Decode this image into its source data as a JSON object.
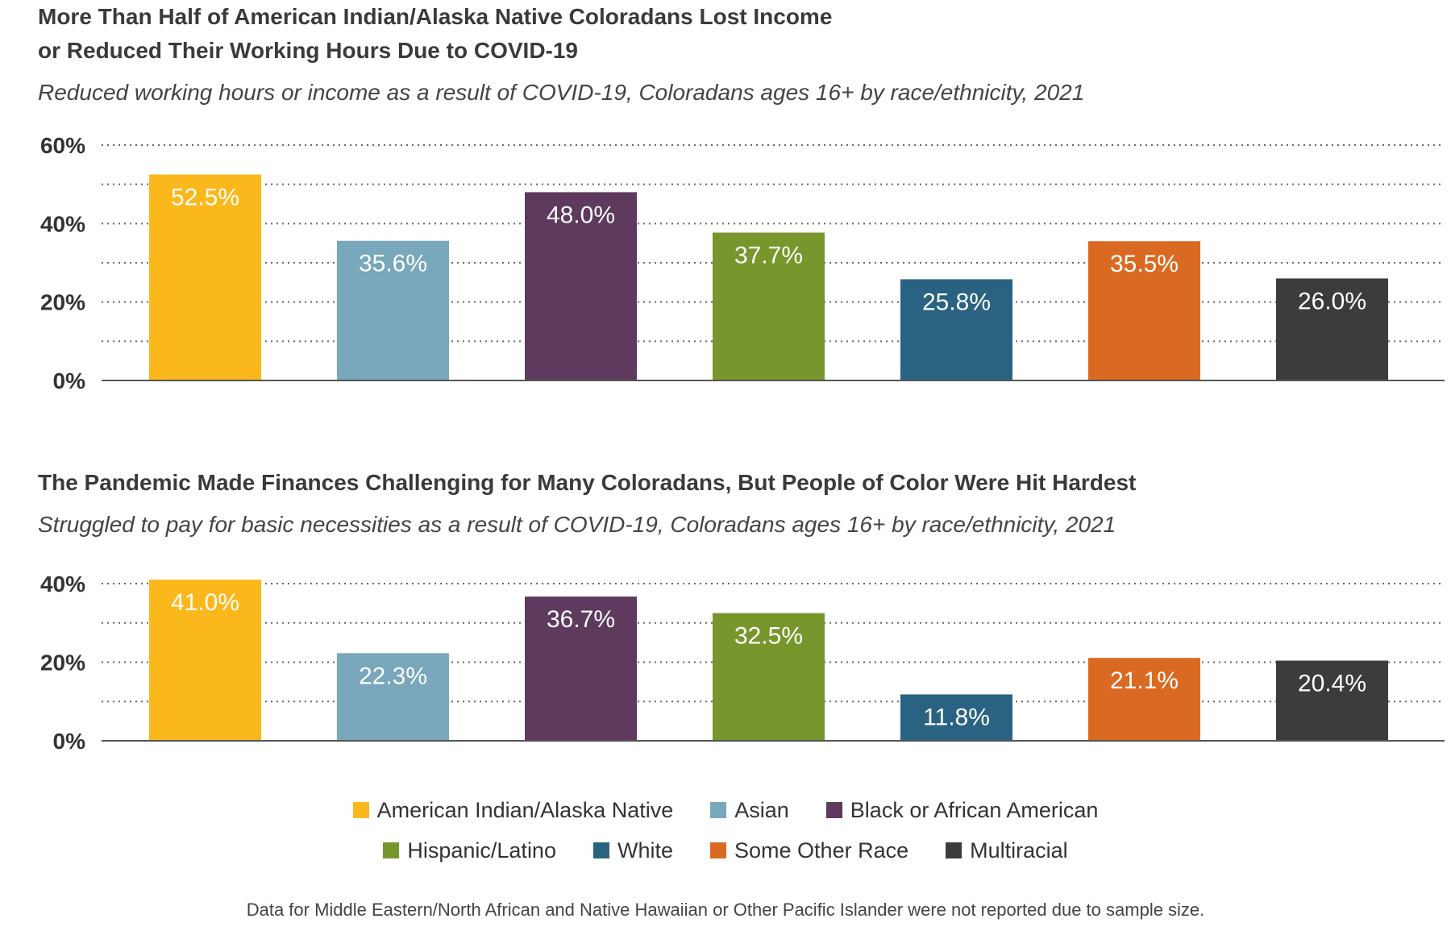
{
  "colors": {
    "American Indian/Alaska Native": "#FBB81C",
    "Asian": "#79A7BC",
    "Black or African American": "#5E3A5E",
    "Hispanic/Latino": "#77972C",
    "White": "#2A6281",
    "Some Other Race": "#DA6A22",
    "Multiracial": "#3C3C3C"
  },
  "legend": {
    "rows": [
      [
        "American Indian/Alaska Native",
        "Asian",
        "Black or African American"
      ],
      [
        "Hispanic/Latino",
        "White",
        "Some Other Race",
        "Multiracial"
      ]
    ]
  },
  "footnote": "Data for Middle Eastern/North African and Native Hawaiian or Other Pacific Islander were not reported due to sample size.",
  "chart_data": [
    {
      "type": "bar",
      "title_line1": "More Than Half of American Indian/Alaska Native Coloradans Lost Income",
      "title_line2": "or Reduced Their Working Hours Due to COVID-19",
      "subtitle": "Reduced working hours or income as a result of COVID-19, Coloradans ages 16+ by race/ethnicity, 2021",
      "categories": [
        "American Indian/Alaska Native",
        "Asian",
        "Black or African American",
        "Hispanic/Latino",
        "White",
        "Some Other Race",
        "Multiracial"
      ],
      "values": [
        52.5,
        35.6,
        48.0,
        37.7,
        25.8,
        35.5,
        26.0
      ],
      "value_labels": [
        "52.5%",
        "35.6%",
        "48.0%",
        "37.7%",
        "25.8%",
        "35.5%",
        "26.0%"
      ],
      "ylim": [
        0,
        60
      ],
      "ytick_values": [
        0,
        20,
        40,
        60
      ],
      "ytick_labels": [
        "0%",
        "20%",
        "40%",
        "60%"
      ],
      "gridline_values": [
        10,
        20,
        30,
        40,
        50,
        60
      ],
      "grid": true,
      "xlabel": "",
      "ylabel": ""
    },
    {
      "type": "bar",
      "title_line1": "The Pandemic Made Finances Challenging for Many Coloradans, But People of Color Were Hit Hardest",
      "subtitle": "Struggled to pay for basic necessities as a result of COVID-19, Coloradans ages 16+ by race/ethnicity, 2021",
      "categories": [
        "American Indian/Alaska Native",
        "Asian",
        "Black or African American",
        "Hispanic/Latino",
        "White",
        "Some Other Race",
        "Multiracial"
      ],
      "values": [
        41.0,
        22.3,
        36.7,
        32.5,
        11.8,
        21.1,
        20.4
      ],
      "value_labels": [
        "41.0%",
        "22.3%",
        "36.7%",
        "32.5%",
        "11.8%",
        "21.1%",
        "20.4%"
      ],
      "ylim": [
        0,
        40
      ],
      "ytick_values": [
        0,
        20,
        40
      ],
      "ytick_labels": [
        "0%",
        "20%",
        "40%"
      ],
      "gridline_values": [
        10,
        20,
        30,
        40
      ],
      "grid": true,
      "xlabel": "",
      "ylabel": ""
    }
  ]
}
